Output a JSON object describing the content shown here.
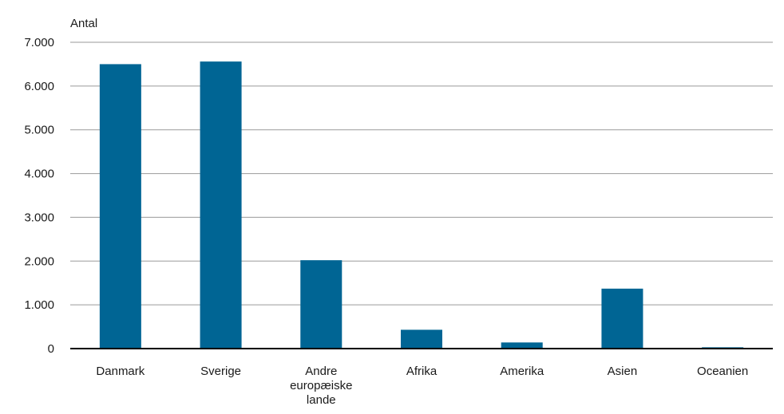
{
  "chart_data": {
    "type": "bar",
    "ylabel": "Antal",
    "categories": [
      [
        "Danmark"
      ],
      [
        "Sverige"
      ],
      [
        "Andre",
        "europæiske",
        "lande"
      ],
      [
        "Afrika"
      ],
      [
        "Amerika"
      ],
      [
        "Asien"
      ],
      [
        "Oceanien"
      ]
    ],
    "values": [
      6500,
      6560,
      2020,
      430,
      140,
      1370,
      30
    ],
    "ylim": [
      0,
      7000
    ],
    "yticks": [
      0,
      1000,
      2000,
      3000,
      4000,
      5000,
      6000,
      7000
    ],
    "ytick_labels": [
      "0",
      "1.000",
      "2.000",
      "3.000",
      "4.000",
      "5.000",
      "6.000",
      "7.000"
    ],
    "grid": true,
    "legend": "none",
    "colors": {
      "bar": "#006594",
      "grid": "#9a9a9a",
      "axis": "#000000"
    }
  }
}
